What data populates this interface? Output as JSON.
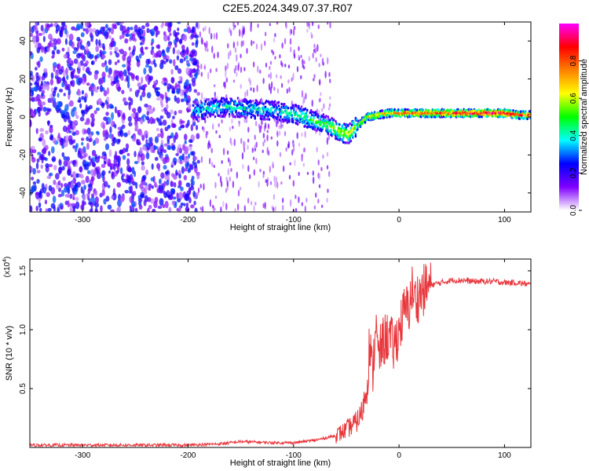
{
  "title": "C2E5.2024.349.07.37.R07",
  "chart_data": [
    {
      "type": "heatmap",
      "xlabel": "Height of straight line (km)",
      "ylabel": "Frequency (Hz)",
      "xlim": [
        -350,
        125
      ],
      "ylim": [
        -50,
        50
      ],
      "xticks": [
        -300,
        -200,
        -100,
        0,
        100
      ],
      "xtick_labels": [
        "-300",
        "-200",
        "-100",
        "0",
        "100"
      ],
      "yticks": [
        -40,
        -20,
        0,
        20,
        40
      ],
      "ytick_labels": [
        "-40",
        "-20",
        "0",
        "20",
        "40"
      ],
      "colorbar": {
        "label": "Normalized spectral amplitude",
        "range": [
          0.0,
          1.0
        ],
        "ticks": [
          0.0,
          0.2,
          0.4,
          0.6,
          0.8
        ],
        "tick_labels": [
          "0.0",
          "0.2",
          "0.4",
          "0.6",
          "0.8"
        ],
        "colors": [
          "#ffffff",
          "#8000ff",
          "#0000ff",
          "#00ffff",
          "#00ff00",
          "#ffff00",
          "#ff8000",
          "#ff0000",
          "#ff00ff"
        ]
      },
      "ridge_x": [
        -195,
        -175,
        -155,
        -135,
        -115,
        -95,
        -80,
        -65,
        -55,
        -48,
        -40,
        -30,
        -20,
        -10,
        0,
        20,
        50,
        80,
        100,
        115,
        125
      ],
      "ridge_y": [
        3,
        5,
        5,
        4,
        3,
        1,
        -2,
        -5,
        -8,
        -9,
        -5,
        0,
        1,
        2,
        2,
        2,
        2,
        2,
        2,
        1,
        1
      ],
      "ridge_amplitude": [
        0.35,
        0.4,
        0.4,
        0.4,
        0.4,
        0.45,
        0.5,
        0.55,
        0.6,
        0.6,
        0.6,
        0.65,
        0.7,
        0.75,
        0.8,
        0.85,
        0.9,
        0.95,
        0.95,
        0.9,
        0.85
      ],
      "noise_region": [
        -350,
        -190
      ]
    },
    {
      "type": "line",
      "xlabel": "Height of straight line (km)",
      "ylabel": "SNR (10 * v/v)",
      "yscale_label": "(x10",
      "yscale_exp": "4",
      "yscale_close": ")",
      "xlim": [
        -350,
        125
      ],
      "ylim": [
        0,
        1.6
      ],
      "xticks": [
        -300,
        -200,
        -100,
        0,
        100
      ],
      "xtick_labels": [
        "-300",
        "-200",
        "-100",
        "0",
        "100"
      ],
      "yticks": [
        0.5,
        1.0,
        1.5
      ],
      "ytick_labels": [
        "0.5",
        "1.0",
        "1.5"
      ],
      "series": [
        {
          "color": "#e8383d",
          "x": [
            -350,
            -300,
            -250,
            -200,
            -170,
            -150,
            -120,
            -100,
            -80,
            -60,
            -50,
            -40,
            -35,
            -30,
            -28,
            -25,
            -22,
            -20,
            -15,
            -10,
            -5,
            0,
            5,
            10,
            12,
            15,
            20,
            25,
            30,
            40,
            50,
            60,
            70,
            80,
            90,
            100,
            110,
            120,
            125
          ],
          "y": [
            0.02,
            0.02,
            0.02,
            0.02,
            0.03,
            0.05,
            0.04,
            0.04,
            0.06,
            0.1,
            0.15,
            0.22,
            0.3,
            0.55,
            0.9,
            0.6,
            1.1,
            0.75,
            0.9,
            0.95,
            0.85,
            1.0,
            1.15,
            1.2,
            1.35,
            1.25,
            1.3,
            1.35,
            1.38,
            1.4,
            1.42,
            1.42,
            1.41,
            1.41,
            1.41,
            1.4,
            1.4,
            1.39,
            1.38
          ]
        }
      ]
    }
  ]
}
